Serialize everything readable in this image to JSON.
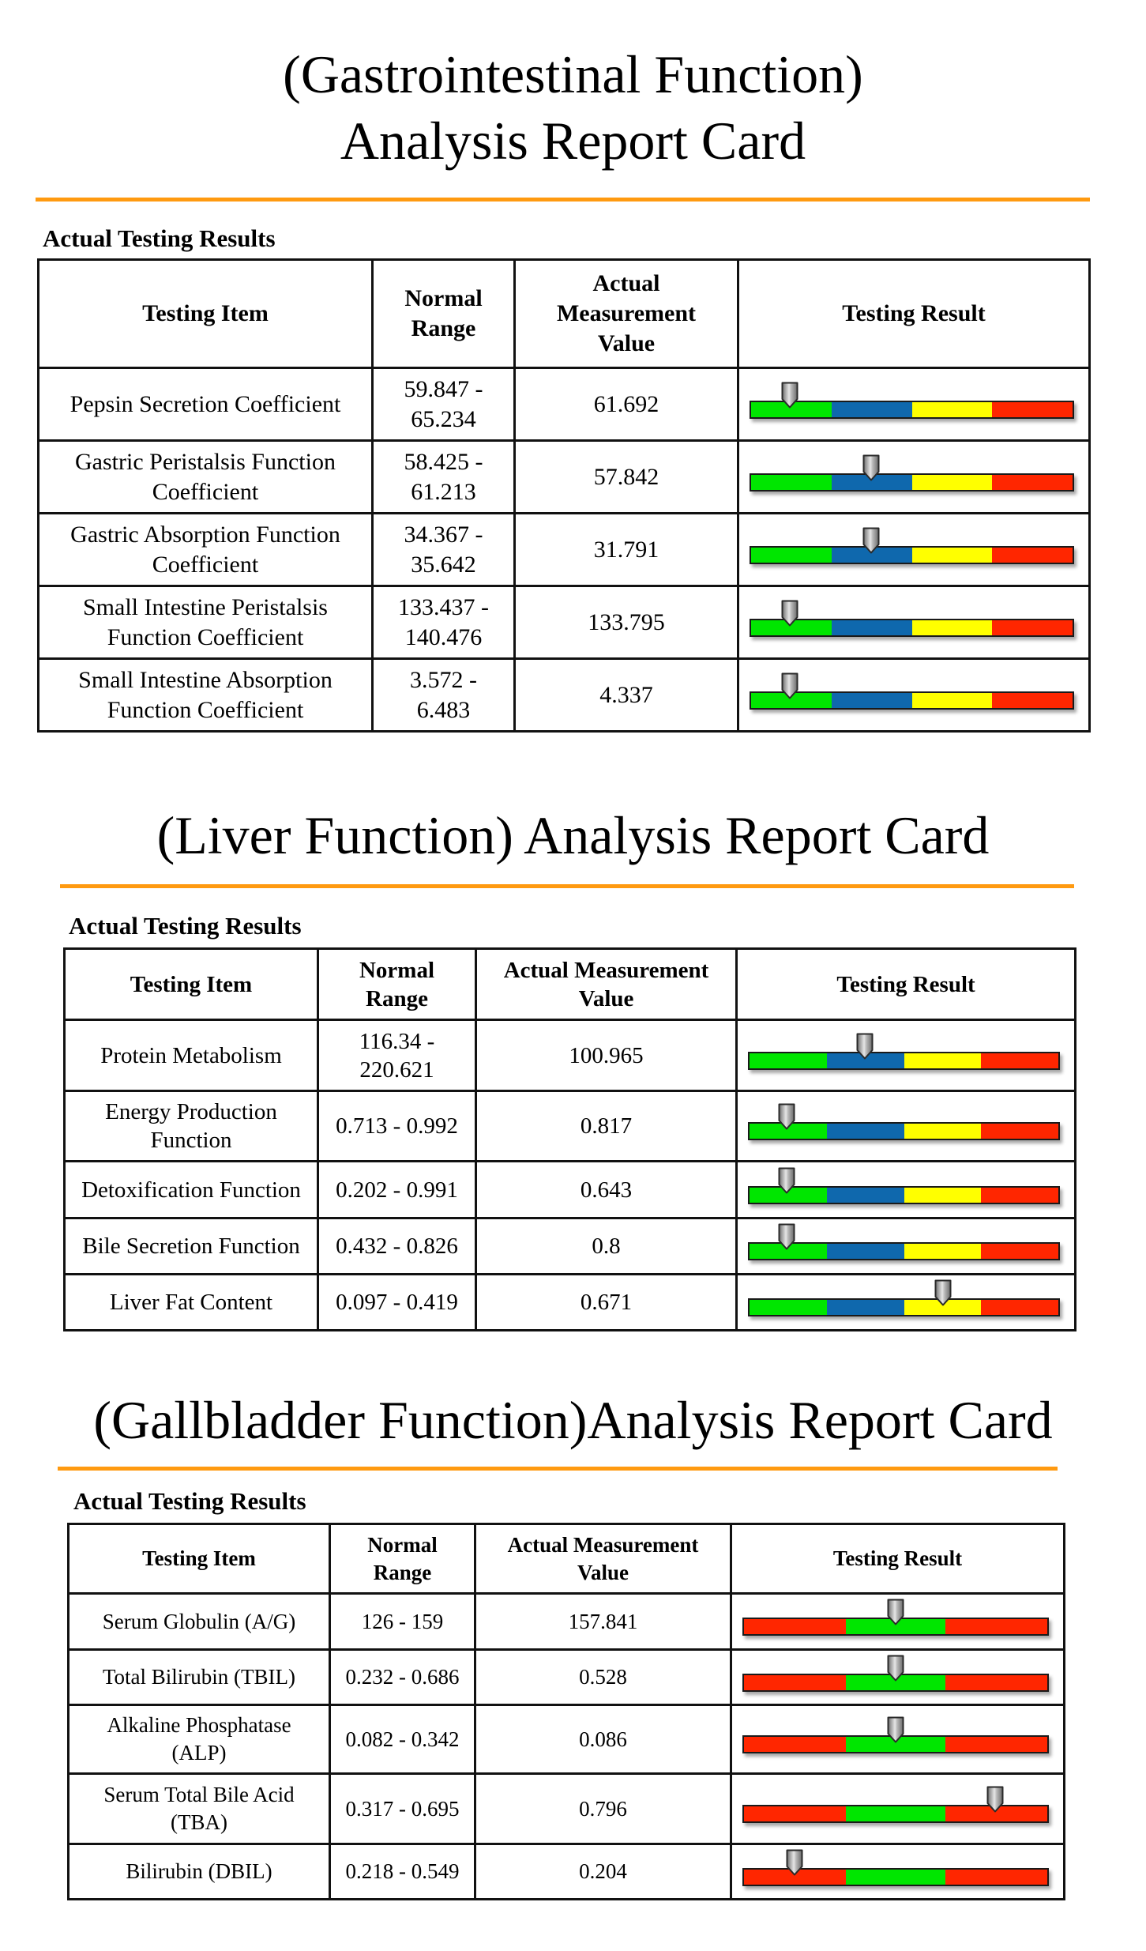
{
  "sections": [
    {
      "id": "gastro",
      "title_lines": [
        "(Gastrointestinal Function)",
        "Analysis Report Card"
      ],
      "subheading": "Actual Testing Results",
      "headers": {
        "item": "Testing Item",
        "range": [
          "Normal",
          "Range"
        ],
        "value": [
          "Actual",
          "Measurement",
          "Value"
        ],
        "result": "Testing Result"
      },
      "scale_colors": [
        "#00e600",
        "#0f68ad",
        "#ffff00",
        "#ff2600"
      ],
      "scale_fractions": [
        0.25,
        0.25,
        0.25,
        0.25
      ],
      "rows": [
        {
          "item": [
            "Pepsin Secretion Coefficient"
          ],
          "range": [
            "59.847 -",
            "65.234"
          ],
          "value": "61.692",
          "pointer": 0.125
        },
        {
          "item": [
            "Gastric Peristalsis Function",
            "Coefficient"
          ],
          "range": [
            "58.425 -",
            "61.213"
          ],
          "value": "57.842",
          "pointer": 0.375
        },
        {
          "item": [
            "Gastric Absorption Function",
            "Coefficient"
          ],
          "range": [
            "34.367 -",
            "35.642"
          ],
          "value": "31.791",
          "pointer": 0.375
        },
        {
          "item": [
            "Small Intestine Peristalsis",
            "Function Coefficient"
          ],
          "range": [
            "133.437 -",
            "140.476"
          ],
          "value": "133.795",
          "pointer": 0.125
        },
        {
          "item": [
            "Small Intestine Absorption",
            "Function Coefficient"
          ],
          "range": [
            "3.572 -",
            "6.483"
          ],
          "value": "4.337",
          "pointer": 0.125
        }
      ]
    },
    {
      "id": "liver",
      "title_lines": [
        "(Liver Function) Analysis Report Card"
      ],
      "subheading": "Actual Testing Results",
      "headers": {
        "item": "Testing Item",
        "range": [
          "Normal",
          "Range"
        ],
        "value": [
          "Actual Measurement",
          "Value"
        ],
        "result": "Testing Result"
      },
      "scale_colors": [
        "#00e600",
        "#0f68ad",
        "#ffff00",
        "#ff2600"
      ],
      "scale_fractions": [
        0.25,
        0.25,
        0.25,
        0.25
      ],
      "rows": [
        {
          "item": [
            "Protein Metabolism"
          ],
          "range": [
            "116.34 -",
            "220.621"
          ],
          "value": "100.965",
          "pointer": 0.375
        },
        {
          "item": [
            "Energy Production",
            "Function"
          ],
          "range": [
            "0.713 - 0.992"
          ],
          "value": "0.817",
          "pointer": 0.125
        },
        {
          "item": [
            "Detoxification Function"
          ],
          "range": [
            "0.202 - 0.991"
          ],
          "value": "0.643",
          "pointer": 0.125
        },
        {
          "item": [
            "Bile Secretion Function"
          ],
          "range": [
            "0.432 - 0.826"
          ],
          "value": "0.8",
          "pointer": 0.125
        },
        {
          "item": [
            "Liver Fat Content"
          ],
          "range": [
            "0.097 - 0.419"
          ],
          "value": "0.671",
          "pointer": 0.625
        }
      ]
    },
    {
      "id": "gallbladder",
      "title_lines": [
        "(Gallbladder Function)Analysis Report Card"
      ],
      "subheading": "Actual Testing Results",
      "headers": {
        "item": "Testing Item",
        "range": [
          "Normal",
          "Range"
        ],
        "value": [
          "Actual Measurement",
          "Value"
        ],
        "result": "Testing Result"
      },
      "scale_colors": [
        "#ff2600",
        "#00e600",
        "#ff2600"
      ],
      "scale_fractions": [
        0.335,
        0.33,
        0.335
      ],
      "rows": [
        {
          "item": [
            "Serum Globulin (A/G)"
          ],
          "range": [
            "126 - 159"
          ],
          "value": "157.841",
          "pointer": 0.5
        },
        {
          "item": [
            "Total Bilirubin (TBIL)"
          ],
          "range": [
            "0.232 - 0.686"
          ],
          "value": "0.528",
          "pointer": 0.5
        },
        {
          "item": [
            "Alkaline Phosphatase",
            "(ALP)"
          ],
          "range": [
            "0.082 - 0.342"
          ],
          "value": "0.086",
          "pointer": 0.5
        },
        {
          "item": [
            "Serum Total Bile Acid",
            "(TBA)"
          ],
          "range": [
            "0.317 - 0.695"
          ],
          "value": "0.796",
          "pointer": 0.825
        },
        {
          "item": [
            "Bilirubin (DBIL)"
          ],
          "range": [
            "0.218 - 0.549"
          ],
          "value": "0.204",
          "pointer": 0.17
        }
      ]
    }
  ],
  "colors": {
    "rule": "#ff9a10",
    "pointer_fill": "#9a9a9a",
    "pointer_stroke": "#2a2a2a"
  }
}
